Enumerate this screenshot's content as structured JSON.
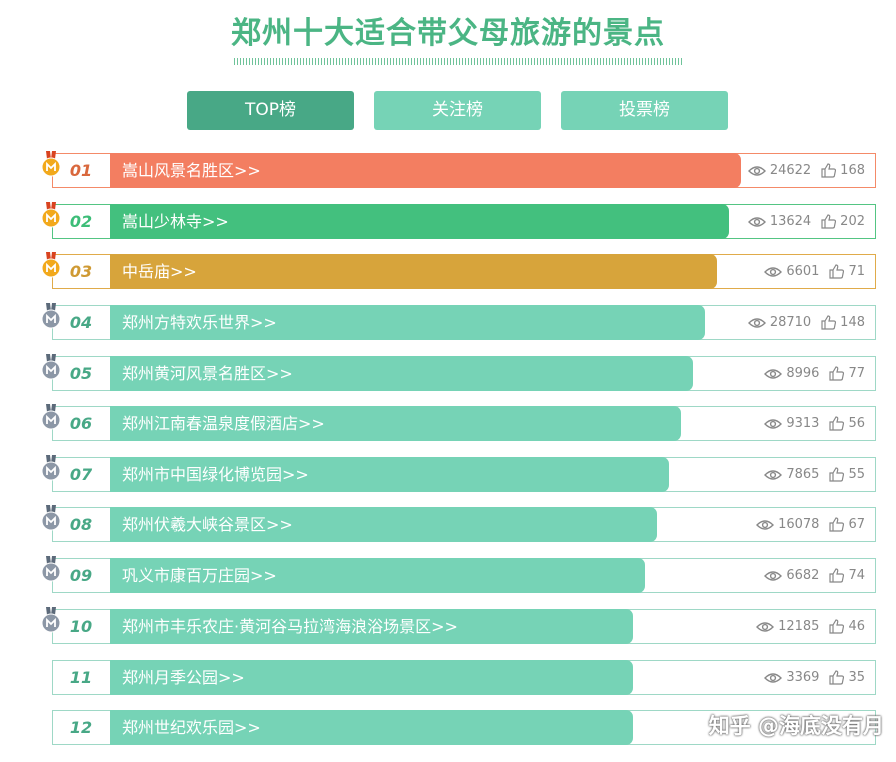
{
  "page": {
    "title": "郑州十大适合带父母旅游的景点"
  },
  "tabs": [
    {
      "label": "TOP榜",
      "active": true
    },
    {
      "label": "关注榜",
      "active": false
    },
    {
      "label": "投票榜",
      "active": false
    }
  ],
  "rows": [
    {
      "rank": "01",
      "name": "嵩山风景名胜区>>",
      "views": "24622",
      "likes": "168",
      "medal": "gold"
    },
    {
      "rank": "02",
      "name": "嵩山少林寺>>",
      "views": "13624",
      "likes": "202",
      "medal": "gold"
    },
    {
      "rank": "03",
      "name": "中岳庙>>",
      "views": "6601",
      "likes": "71",
      "medal": "gold"
    },
    {
      "rank": "04",
      "name": "郑州方特欢乐世界>>",
      "views": "28710",
      "likes": "148",
      "medal": "silver"
    },
    {
      "rank": "05",
      "name": "郑州黄河风景名胜区>>",
      "views": "8996",
      "likes": "77",
      "medal": "silver"
    },
    {
      "rank": "06",
      "name": "郑州江南春温泉度假酒店>>",
      "views": "9313",
      "likes": "56",
      "medal": "silver"
    },
    {
      "rank": "07",
      "name": "郑州市中国绿化博览园>>",
      "views": "7865",
      "likes": "55",
      "medal": "silver"
    },
    {
      "rank": "08",
      "name": "郑州伏羲大峡谷景区>>",
      "views": "16078",
      "likes": "67",
      "medal": "silver"
    },
    {
      "rank": "09",
      "name": "巩义市康百万庄园>>",
      "views": "6682",
      "likes": "74",
      "medal": "silver"
    },
    {
      "rank": "10",
      "name": "郑州市丰乐农庄·黄河谷马拉湾海浪浴场景区>>",
      "views": "12185",
      "likes": "46",
      "medal": "silver"
    },
    {
      "rank": "11",
      "name": "郑州月季公园>>",
      "views": "3369",
      "likes": "35",
      "medal": "none"
    },
    {
      "rank": "12",
      "name": "郑州世纪欢乐园>>",
      "views": "",
      "likes": "",
      "medal": "none"
    }
  ],
  "watermark": "知乎 @海底没有月",
  "colors": {
    "accent": "#48a886",
    "bar": "#76d3b6",
    "first": "#f37e61",
    "second": "#43c07e",
    "third": "#d7a43b"
  }
}
